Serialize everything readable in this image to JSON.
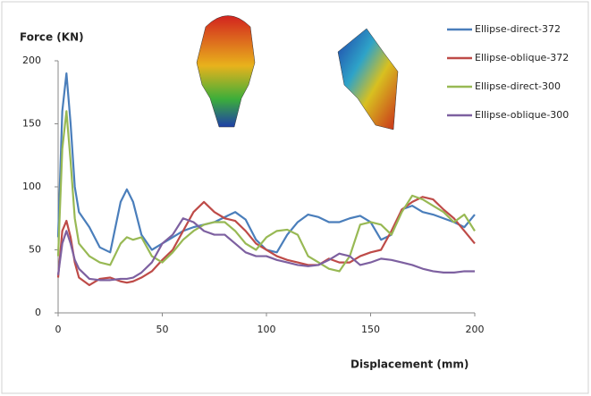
{
  "chart_data": {
    "type": "line",
    "title": "Force (KN)",
    "x_label": "Displacement (mm)",
    "x": [
      0,
      2,
      4,
      6,
      8,
      10,
      15,
      20,
      25,
      30,
      33,
      36,
      40,
      45,
      50,
      55,
      60,
      65,
      70,
      75,
      80,
      85,
      90,
      95,
      100,
      105,
      110,
      115,
      120,
      125,
      130,
      135,
      140,
      145,
      150,
      155,
      160,
      165,
      170,
      175,
      180,
      185,
      190,
      195,
      200
    ],
    "series": [
      {
        "name": "Ellipse-direct-372",
        "color": "#4a7ebb",
        "values": [
          60,
          160,
          190,
          150,
          100,
          80,
          68,
          52,
          48,
          88,
          98,
          88,
          62,
          50,
          55,
          60,
          65,
          68,
          70,
          72,
          76,
          80,
          74,
          58,
          50,
          48,
          62,
          72,
          78,
          76,
          72,
          72,
          75,
          77,
          72,
          58,
          62,
          82,
          85,
          80,
          78,
          75,
          72,
          68,
          78
        ]
      },
      {
        "name": "Ellipse-oblique-372",
        "color": "#be4b48",
        "values": [
          28,
          65,
          73,
          60,
          40,
          28,
          22,
          27,
          28,
          25,
          24,
          25,
          28,
          33,
          42,
          50,
          65,
          80,
          88,
          80,
          75,
          73,
          65,
          55,
          50,
          45,
          42,
          40,
          38,
          38,
          43,
          40,
          40,
          45,
          48,
          50,
          65,
          82,
          88,
          92,
          90,
          82,
          75,
          65,
          55
        ]
      },
      {
        "name": "Ellipse-direct-300",
        "color": "#98b954",
        "values": [
          45,
          130,
          160,
          120,
          75,
          55,
          45,
          40,
          38,
          55,
          60,
          58,
          60,
          45,
          40,
          48,
          58,
          65,
          70,
          72,
          72,
          65,
          55,
          50,
          60,
          65,
          66,
          62,
          45,
          40,
          35,
          33,
          45,
          70,
          72,
          70,
          62,
          80,
          93,
          90,
          85,
          80,
          72,
          78,
          65
        ]
      },
      {
        "name": "Ellipse-oblique-300",
        "color": "#7d60a0",
        "values": [
          30,
          55,
          65,
          55,
          42,
          35,
          27,
          26,
          26,
          27,
          27,
          28,
          32,
          40,
          55,
          62,
          75,
          72,
          65,
          62,
          62,
          55,
          48,
          45,
          45,
          42,
          40,
          38,
          37,
          38,
          42,
          47,
          45,
          38,
          40,
          43,
          42,
          40,
          38,
          35,
          33,
          32,
          32,
          33,
          33
        ]
      }
    ],
    "xlim": [
      0,
      200
    ],
    "xticks": [
      0,
      50,
      100,
      150,
      200
    ],
    "ylim": [
      0,
      200
    ],
    "yticks": [
      0,
      50,
      100,
      150,
      200
    ],
    "grid": false,
    "legend": "right"
  }
}
